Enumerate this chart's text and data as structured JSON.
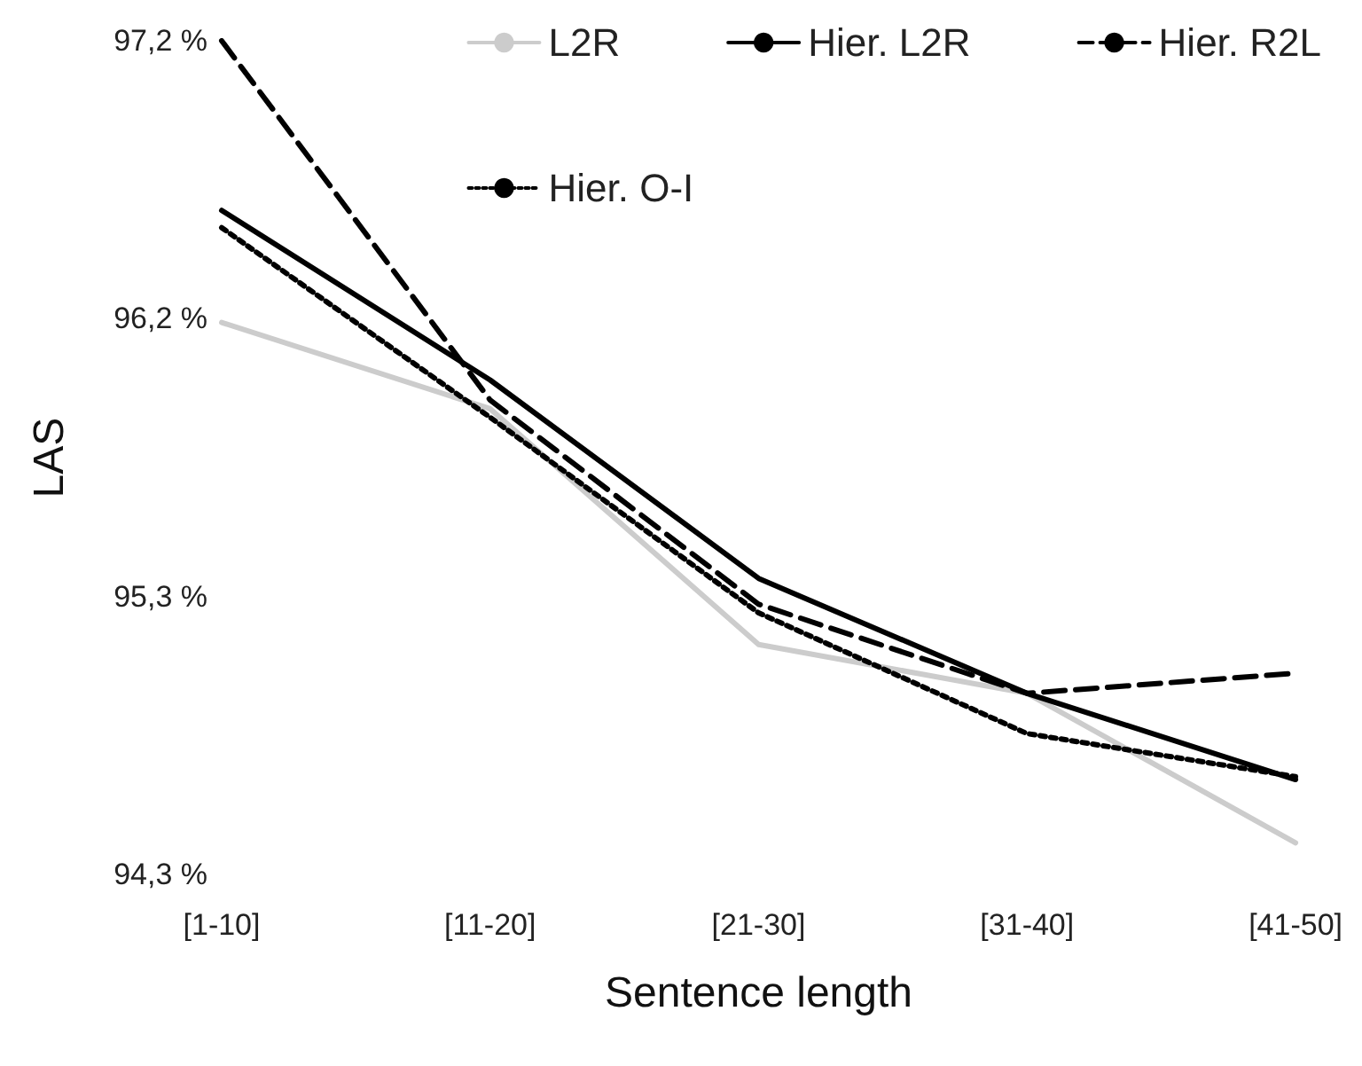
{
  "chart_data": {
    "type": "line",
    "xlabel": "Sentence length",
    "ylabel": "LAS",
    "categories": [
      "[1-10]",
      "[11-20]",
      "[21-30]",
      "[31-40]",
      "[41-50]"
    ],
    "series": [
      {
        "name": "L2R",
        "color": "#cccccc",
        "line_style": "solid",
        "values": [
          96.22,
          95.92,
          95.1,
          94.93,
          94.41
        ]
      },
      {
        "name": "Hier. L2R",
        "color": "#000000",
        "line_style": "solid",
        "values": [
          96.61,
          96.02,
          95.33,
          94.93,
          94.63
        ]
      },
      {
        "name": "Hier. R2L",
        "color": "#000000",
        "line_style": "dashed",
        "values": [
          97.2,
          95.95,
          95.24,
          94.93,
          95.0
        ]
      },
      {
        "name": "Hier. O-I",
        "color": "#000000",
        "line_style": "dotted",
        "values": [
          96.55,
          95.89,
          95.21,
          94.79,
          94.64
        ]
      }
    ],
    "ylim": [
      94.3,
      97.2
    ],
    "yticks": [
      {
        "value": 94.3,
        "label": "94,3 %"
      },
      {
        "value": 95.267,
        "label": "95,3 %"
      },
      {
        "value": 96.233,
        "label": "96,2 %"
      },
      {
        "value": 97.2,
        "label": "97,2 %"
      }
    ],
    "grid": false,
    "legend": "top right",
    "marker": "none"
  }
}
